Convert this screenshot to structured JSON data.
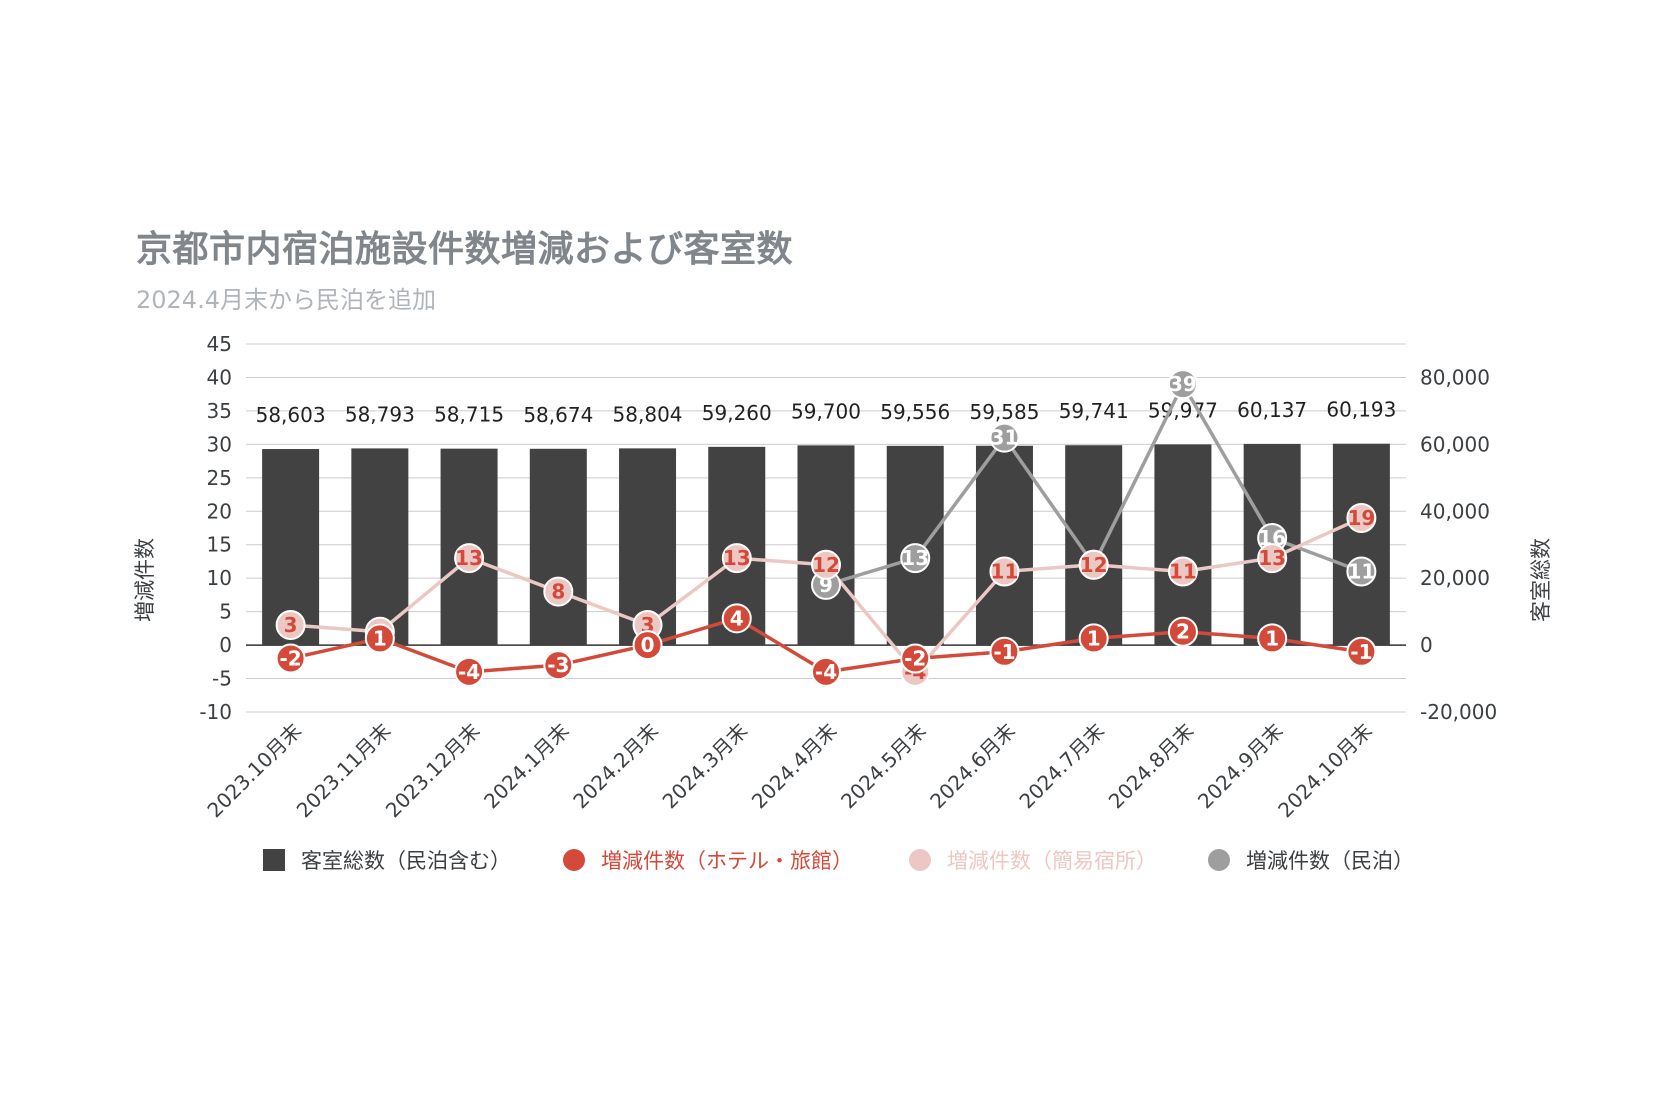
{
  "title": "京都市内宿泊施設件数増減および客室数",
  "subtitle": "2024.4月末から民泊を追加",
  "chart_data": {
    "type": "bar+line",
    "categories": [
      "2023.10月末",
      "2023.11月末",
      "2023.12月末",
      "2024.1月末",
      "2024.2月末",
      "2024.3月末",
      "2024.4月末",
      "2024.5月末",
      "2024.6月末",
      "2024.7月末",
      "2024.8月末",
      "2024.9月末",
      "2024.10月末"
    ],
    "left_axis": {
      "title": "増減件数",
      "range": [
        -10,
        45
      ],
      "ticks": [
        -10,
        -5,
        0,
        5,
        10,
        15,
        20,
        25,
        30,
        35,
        40,
        45
      ]
    },
    "right_axis": {
      "title": "客室総数",
      "range": [
        -20000,
        90000
      ],
      "ticks": [
        -20000,
        0,
        20000,
        40000,
        60000,
        80000
      ],
      "tick_labels": [
        "-20,000",
        "0",
        "20,000",
        "40,000",
        "60,000",
        "80,000"
      ]
    },
    "bar_series": {
      "name": "客室総数（民泊含む）",
      "color": "#424242",
      "axis": "right",
      "values": [
        58603,
        58793,
        58715,
        58674,
        58804,
        59260,
        59700,
        59556,
        59585,
        59741,
        59977,
        60137,
        60193
      ],
      "labels": [
        "58,603",
        "58,793",
        "58,715",
        "58,674",
        "58,804",
        "59,260",
        "59,700",
        "59,556",
        "59,585",
        "59,741",
        "59,977",
        "60,137",
        "60,193"
      ]
    },
    "line_series": [
      {
        "name": "増減件数（ホテル・旅館）",
        "color": "#d44a3a",
        "label_color": "#ffffff",
        "values": [
          -2,
          1,
          -4,
          -3,
          0,
          4,
          -4,
          -2,
          -1,
          1,
          2,
          1,
          -1
        ]
      },
      {
        "name": "増減件数（簡易宿所）",
        "color": "#ecc8c4",
        "label_color": "#d44a3a",
        "values": [
          3,
          2,
          13,
          8,
          3,
          13,
          12,
          -4,
          11,
          12,
          11,
          13,
          19
        ]
      },
      {
        "name": "増減件数（民泊）",
        "color": "#9e9e9e",
        "label_color": "#ffffff",
        "values": [
          null,
          null,
          null,
          null,
          null,
          null,
          9,
          13,
          31,
          12,
          39,
          16,
          11
        ]
      }
    ],
    "legend_position": "bottom",
    "grid": true
  }
}
